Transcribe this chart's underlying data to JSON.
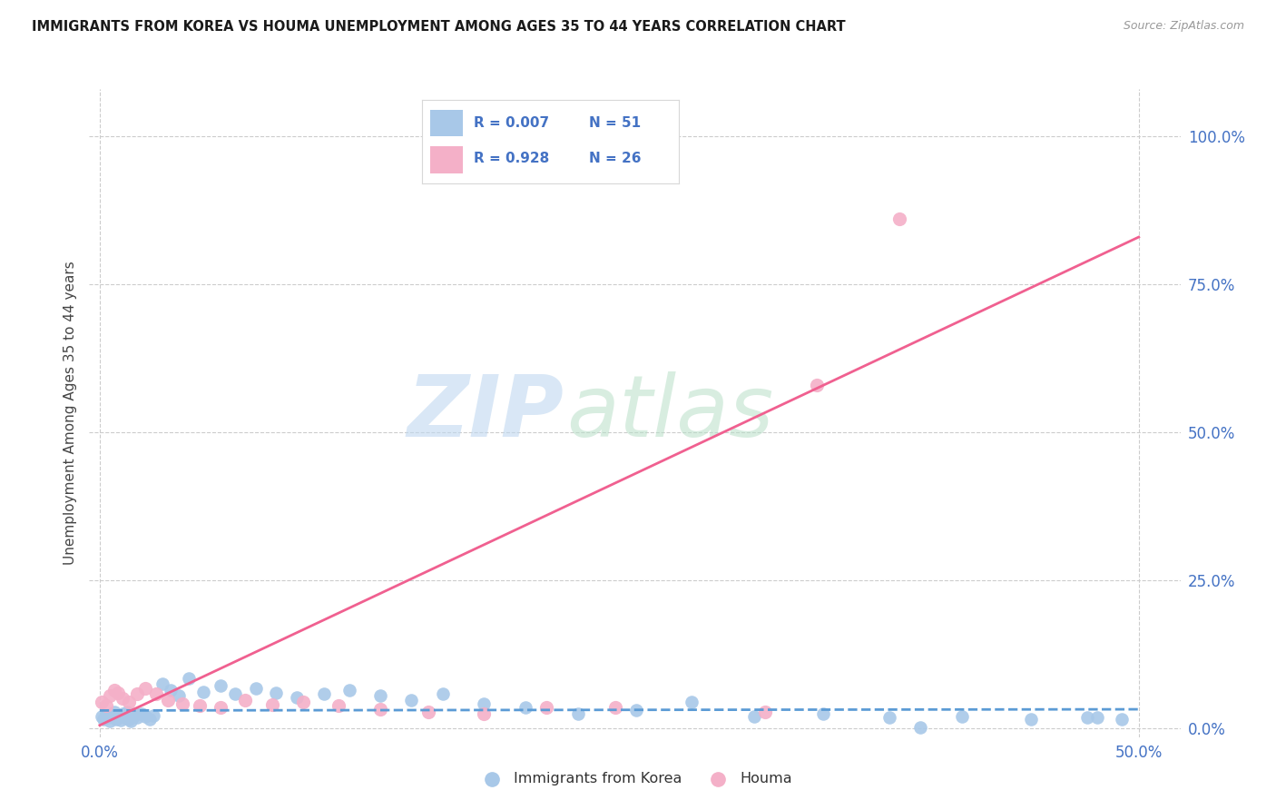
{
  "title": "IMMIGRANTS FROM KOREA VS HOUMA UNEMPLOYMENT AMONG AGES 35 TO 44 YEARS CORRELATION CHART",
  "source": "Source: ZipAtlas.com",
  "ylabel_label": "Unemployment Among Ages 35 to 44 years",
  "x_tick_values": [
    0.0,
    0.5
  ],
  "x_tick_labels": [
    "0.0%",
    "50.0%"
  ],
  "y_tick_values": [
    0.0,
    0.25,
    0.5,
    0.75,
    1.0
  ],
  "y_tick_labels": [
    "0.0%",
    "25.0%",
    "50.0%",
    "75.0%",
    "100.0%"
  ],
  "xlim": [
    -0.005,
    0.52
  ],
  "ylim": [
    -0.015,
    1.08
  ],
  "background_color": "#ffffff",
  "grid_color": "#cccccc",
  "korea_color": "#a8c8e8",
  "houma_color": "#f4b0c8",
  "korea_line_color": "#5b9bd5",
  "houma_line_color": "#f06090",
  "legend_korea_R": "0.007",
  "legend_korea_N": "51",
  "legend_houma_R": "0.928",
  "legend_houma_N": "26",
  "title_color": "#1a1a1a",
  "axis_label_color": "#4472c4",
  "ylabel_color": "#444444",
  "korea_scatter_x": [
    0.001,
    0.002,
    0.003,
    0.004,
    0.005,
    0.006,
    0.007,
    0.008,
    0.009,
    0.01,
    0.011,
    0.012,
    0.013,
    0.014,
    0.015,
    0.016,
    0.017,
    0.018,
    0.02,
    0.022,
    0.024,
    0.026,
    0.03,
    0.034,
    0.038,
    0.043,
    0.05,
    0.058,
    0.065,
    0.075,
    0.085,
    0.095,
    0.108,
    0.12,
    0.135,
    0.15,
    0.165,
    0.185,
    0.205,
    0.23,
    0.258,
    0.285,
    0.315,
    0.348,
    0.38,
    0.415,
    0.448,
    0.475,
    0.492,
    0.395,
    0.48
  ],
  "korea_scatter_y": [
    0.02,
    0.015,
    0.022,
    0.018,
    0.012,
    0.02,
    0.028,
    0.016,
    0.022,
    0.014,
    0.025,
    0.018,
    0.028,
    0.016,
    0.012,
    0.02,
    0.024,
    0.018,
    0.025,
    0.02,
    0.016,
    0.022,
    0.075,
    0.065,
    0.055,
    0.085,
    0.062,
    0.072,
    0.058,
    0.068,
    0.06,
    0.052,
    0.058,
    0.065,
    0.055,
    0.048,
    0.058,
    0.042,
    0.035,
    0.025,
    0.03,
    0.045,
    0.02,
    0.025,
    0.018,
    0.02,
    0.016,
    0.018,
    0.015,
    0.002,
    0.018
  ],
  "houma_scatter_x": [
    0.001,
    0.003,
    0.005,
    0.007,
    0.009,
    0.011,
    0.014,
    0.018,
    0.022,
    0.027,
    0.033,
    0.04,
    0.048,
    0.058,
    0.07,
    0.083,
    0.098,
    0.115,
    0.135,
    0.158,
    0.185,
    0.215,
    0.248,
    0.32,
    0.345,
    0.385
  ],
  "houma_scatter_y": [
    0.045,
    0.038,
    0.055,
    0.065,
    0.06,
    0.05,
    0.045,
    0.058,
    0.068,
    0.058,
    0.048,
    0.042,
    0.038,
    0.035,
    0.048,
    0.04,
    0.045,
    0.038,
    0.032,
    0.028,
    0.025,
    0.035,
    0.035,
    0.028,
    0.58,
    0.86
  ],
  "korea_trendline_x": [
    0.0,
    0.5
  ],
  "korea_trendline_y": [
    0.03,
    0.032
  ],
  "houma_trendline_x": [
    0.0,
    0.5
  ],
  "houma_trendline_y": [
    0.005,
    0.83
  ]
}
